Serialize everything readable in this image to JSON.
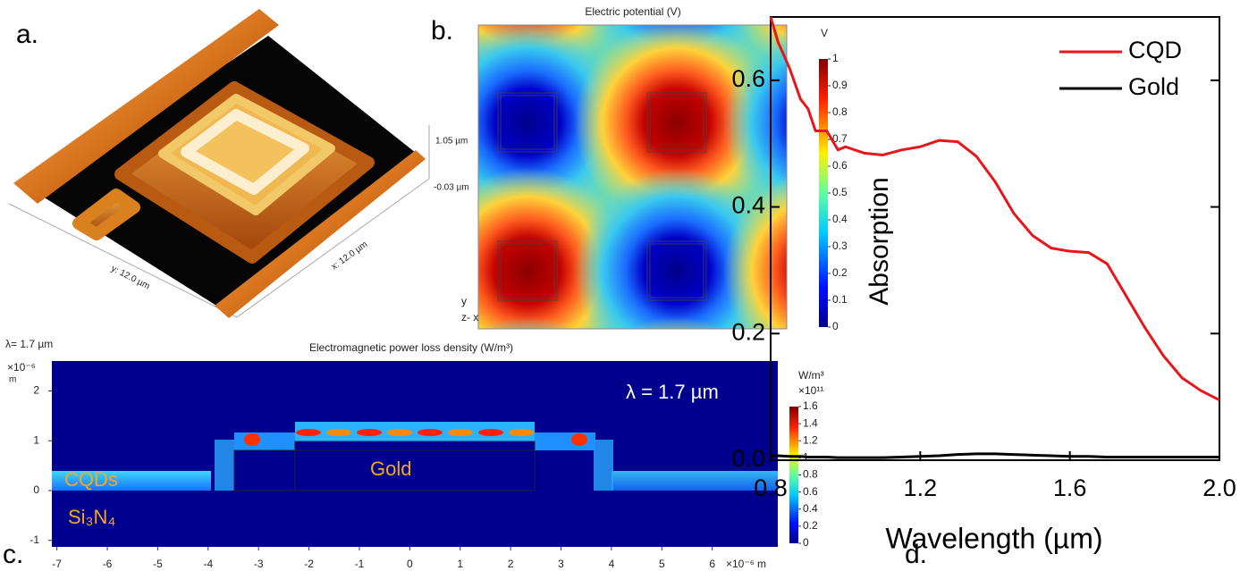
{
  "chart_data": [
    {
      "type": "surface",
      "label": "a.",
      "annotations": [
        "1.05 µm",
        "-0.03 µm",
        "y: 12.0 µm",
        "x: 12.0 µm"
      ]
    },
    {
      "type": "heatmap",
      "label": "b.",
      "title": "Electric potential (V)",
      "colorbar_label": "V",
      "clim": [
        0,
        1
      ],
      "cticks": [
        0,
        0.1,
        0.2,
        0.3,
        0.4,
        0.5,
        0.6,
        0.7,
        0.8,
        0.9,
        1
      ],
      "annotations": [
        "y",
        "z- x"
      ]
    },
    {
      "type": "heatmap",
      "label": "c.",
      "title": "Electromagnetic power loss density (W/m³)",
      "subtitle": "λ= 1.7 µm",
      "colorbar_label": "W/m³",
      "colorbar_scale": "×10¹¹",
      "clim": [
        0,
        1.6
      ],
      "cticks": [
        0,
        0.2,
        0.4,
        0.6,
        0.8,
        1,
        1.2,
        1.4,
        1.6
      ],
      "xlim": [
        -7.1,
        7.3
      ],
      "xticks": [
        -7,
        -6,
        -5,
        -4,
        -3,
        -2,
        -1,
        0,
        1,
        2,
        3,
        4,
        5,
        6
      ],
      "xscale_label": "×10⁻⁶ m",
      "ylim": [
        -1.13,
        2.6
      ],
      "yticks": [
        -1,
        0,
        1,
        2
      ],
      "yscale_label": "×10⁻⁶",
      "yunit": "m",
      "annotations": [
        "λ = 1.7 µm",
        "CQDs",
        "Gold",
        "Si₃N₄"
      ]
    },
    {
      "type": "line",
      "label": "d.",
      "xlabel": "Wavelength (µm)",
      "ylabel": "Absorption",
      "x": [
        0.8,
        0.82,
        0.85,
        0.88,
        0.9,
        0.92,
        0.95,
        0.98,
        1.0,
        1.05,
        1.1,
        1.15,
        1.2,
        1.25,
        1.3,
        1.35,
        1.4,
        1.45,
        1.5,
        1.55,
        1.6,
        1.65,
        1.7,
        1.75,
        1.8,
        1.85,
        1.9,
        1.95,
        2.0
      ],
      "series": [
        {
          "name": "CQD",
          "color": "#e8161b",
          "values": [
            0.7,
            0.66,
            0.62,
            0.57,
            0.555,
            0.52,
            0.52,
            0.49,
            0.495,
            0.485,
            0.482,
            0.49,
            0.495,
            0.505,
            0.503,
            0.48,
            0.44,
            0.39,
            0.355,
            0.335,
            0.33,
            0.328,
            0.31,
            0.26,
            0.21,
            0.165,
            0.13,
            0.11,
            0.095
          ]
        },
        {
          "name": "Gold",
          "color": "#000000",
          "values": [
            0.007,
            0.007,
            0.006,
            0.006,
            0.005,
            0.005,
            0.005,
            0.004,
            0.004,
            0.004,
            0.004,
            0.005,
            0.006,
            0.007,
            0.009,
            0.01,
            0.01,
            0.009,
            0.008,
            0.007,
            0.006,
            0.006,
            0.005,
            0.005,
            0.005,
            0.005,
            0.005,
            0.005,
            0.005
          ]
        }
      ],
      "xlim": [
        0.8,
        2.0
      ],
      "xticks": [
        0.8,
        1.2,
        1.6,
        {
          "value": 2.0,
          "label": "2.0"
        }
      ],
      "ylim": [
        0,
        0.7
      ],
      "yticks": [
        {
          "value": 0,
          "label": "0.0"
        },
        0.2,
        0.4,
        0.6
      ],
      "legend": "upper right"
    }
  ]
}
